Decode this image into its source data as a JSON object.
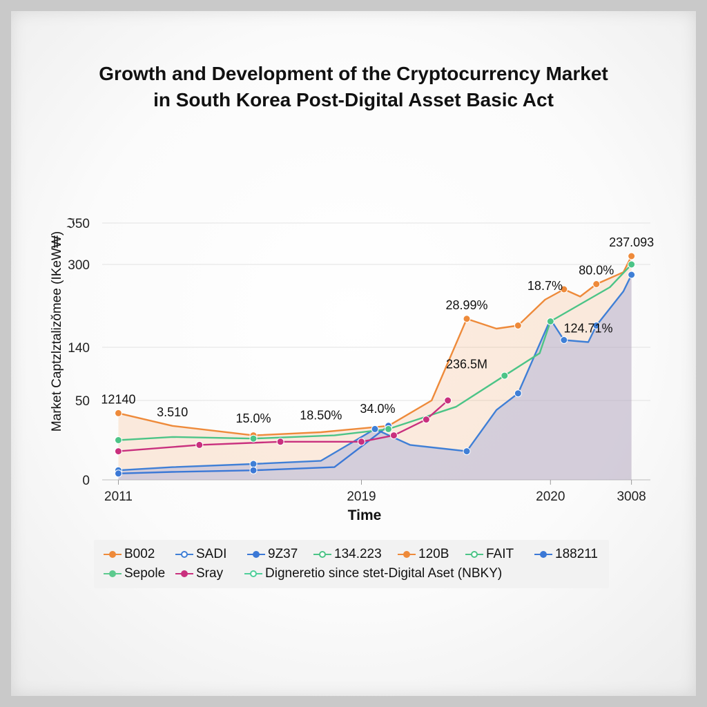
{
  "chart_data": {
    "type": "line",
    "title": "Growth and Development of the Cryptocurrency Market in South Korea Post-Digital Asset Basic Act",
    "title_lines": [
      "Growth and Development of the Cryptocurrency Market",
      "in South Korea Post-Digital Asset Basic Act"
    ],
    "xlabel": "Time",
    "ylabel": "Market Captzlztalizŏmee (IKeW₩)",
    "x_ticks": [
      {
        "label": "2011",
        "x": 0
      },
      {
        "label": "2019",
        "x": 9
      },
      {
        "label": "2020",
        "x": 16
      },
      {
        "label": "3008",
        "x": 19
      }
    ],
    "y_ticks": [
      {
        "label": "0",
        "y": 0
      },
      {
        "label": "50",
        "y": 50
      },
      {
        "label": "140",
        "y": 140
      },
      {
        "label": "300",
        "y": 300
      },
      {
        "label": "350",
        "y": 350
      }
    ],
    "y_tick_labels_display": [
      "0",
      "50",
      "140",
      "300",
      "ℑ50"
    ],
    "xlim": [
      -0.6,
      19.7
    ],
    "grid": "horizontal",
    "legend_position": "bottom",
    "series": [
      {
        "name": "B002",
        "color": "#ee8a3a",
        "area": true,
        "markers": true,
        "x": [
          0,
          2,
          5,
          7.5,
          10,
          11.6,
          12.9,
          14,
          14.8,
          15.8,
          16.5,
          17.1,
          17.7,
          18.7,
          19
        ],
        "y": [
          42,
          34,
          28,
          30,
          34,
          50,
          195,
          176,
          182,
          232,
          252,
          238,
          262,
          285,
          310
        ]
      },
      {
        "name": "SADI",
        "color": "#3f7fd6",
        "area": true,
        "markers": true,
        "x": [
          0,
          2,
          5,
          7.5,
          9.5,
          10.8,
          12.9,
          14,
          14.8,
          16,
          16.5,
          17.4,
          17.7,
          18.7,
          19
        ],
        "y": [
          6,
          8,
          10,
          12,
          32,
          22,
          18,
          44,
          62,
          194,
          154,
          150,
          182,
          248,
          280
        ]
      },
      {
        "name": "9Z37",
        "color": "#3b78d6",
        "markers": true,
        "x": [
          0,
          2,
          5,
          8,
          10
        ],
        "y": [
          4,
          5,
          6,
          8,
          34
        ]
      },
      {
        "name": "134.223",
        "color": "#4cc487",
        "markers": true,
        "x": [
          0,
          2,
          5,
          8,
          10,
          12.5,
          14.3,
          15.6,
          16,
          18.2,
          19
        ],
        "y": [
          25,
          27,
          26,
          28,
          32,
          46,
          92,
          130,
          190,
          256,
          300
        ]
      },
      {
        "name": "Sray",
        "color": "#c9307e",
        "markers": true,
        "x": [
          0,
          3,
          6,
          9,
          10.2,
          11.4,
          12.2
        ],
        "y": [
          18,
          22,
          24,
          24,
          28,
          38,
          50
        ]
      }
    ],
    "annotations": [
      {
        "text": "12140",
        "x": 0,
        "y": 42
      },
      {
        "text": "3.510",
        "x": 2,
        "y": 34
      },
      {
        "text": "15.0%",
        "x": 5,
        "y": 30
      },
      {
        "text": "18.50%",
        "x": 7.5,
        "y": 32
      },
      {
        "text": "34.0%",
        "x": 9.6,
        "y": 36
      },
      {
        "text": "28.99%",
        "x": 12.9,
        "y": 195
      },
      {
        "text": "236.5M",
        "x": 12.9,
        "y": 88
      },
      {
        "text": "18.7%",
        "x": 15.8,
        "y": 232
      },
      {
        "text": "124.71%",
        "x": 17.4,
        "y": 150
      },
      {
        "text": "80.0%",
        "x": 17.7,
        "y": 262
      },
      {
        "text": "237.093",
        "x": 19,
        "y": 310
      }
    ]
  },
  "legend": {
    "row1": [
      {
        "label": "B002",
        "color": "#ee8a3a",
        "dot": true
      },
      {
        "label": "SADI",
        "color": "#3f7fd6",
        "dot": false
      },
      {
        "label": "9Z37",
        "color": "#3b78d6",
        "dot": true
      },
      {
        "label": "134.223",
        "color": "#4cc487",
        "dot": false
      },
      {
        "label": "120B",
        "color": "#ee8a3a",
        "dot": true
      },
      {
        "label": "FAIT",
        "color": "#4cc487",
        "dot": false
      },
      {
        "label": "188211",
        "color": "#3b78d6",
        "dot": true
      }
    ],
    "row2": [
      {
        "label": "Sepole",
        "color": "#5dca8e",
        "dot": true
      },
      {
        "label": "Sray",
        "color": "#c9307e",
        "dot": true
      },
      {
        "label": "Digneretio since stet-Digital Aset (NBKY)",
        "color": "#4fcf9a",
        "dot": false
      }
    ]
  }
}
